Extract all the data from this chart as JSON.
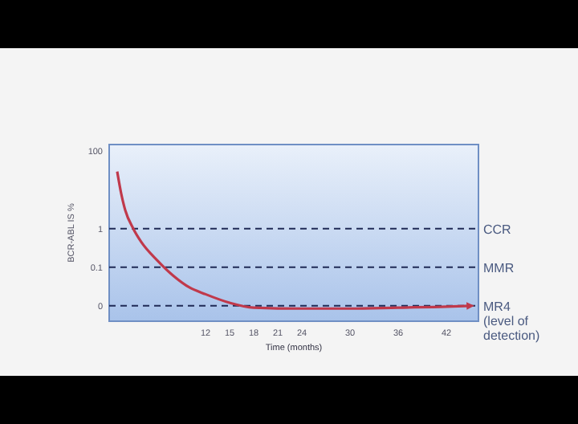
{
  "chart_data": {
    "type": "line",
    "xlabel": "Time (months)",
    "ylabel": "BCR-ABL IS %",
    "log": "y",
    "xlim": [
      0,
      46
    ],
    "xticks": [
      12,
      15,
      18,
      21,
      24,
      30,
      36,
      42
    ],
    "ylim": [
      0.004,
      150
    ],
    "yticks": [
      100,
      1,
      0.1,
      {
        "value": 0.01,
        "label": "0"
      }
    ],
    "grid": false,
    "marker": "none",
    "line_style": "solid",
    "x": [
      1,
      1.5,
      2,
      3,
      4,
      6,
      8,
      10,
      12,
      15,
      18,
      24,
      30,
      36,
      42,
      45
    ],
    "series": [
      {
        "color": "#c0394b",
        "values": [
          30,
          8,
          3,
          1,
          0.45,
          0.15,
          0.06,
          0.03,
          0.02,
          0.012,
          0.009,
          0.0085,
          0.0085,
          0.009,
          0.0095,
          0.01
        ]
      }
    ],
    "ref_lines": [
      {
        "axis": "y",
        "value": 1,
        "label": "CCR",
        "color": "#1f2a55",
        "line_style": "dashed"
      },
      {
        "axis": "y",
        "value": 0.1,
        "label": "MMR",
        "color": "#1f2a55",
        "line_style": "dashed"
      },
      {
        "axis": "y",
        "value": 0.01,
        "label": "MR4 (level of detection)",
        "color": "#1f2a55",
        "line_style": "dashed"
      }
    ]
  }
}
